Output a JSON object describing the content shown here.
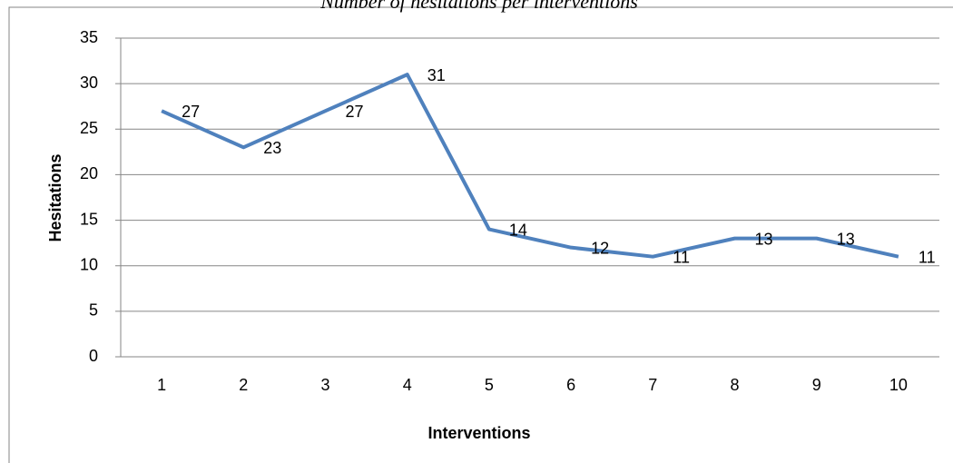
{
  "chart_data": {
    "type": "line",
    "title": "Number of hesitations per interventions",
    "x_label": "Interventions",
    "y_label": "Hesitations",
    "categories": [
      "1",
      "2",
      "3",
      "4",
      "5",
      "6",
      "7",
      "8",
      "9",
      "10"
    ],
    "series": [
      {
        "name": "Hesitations",
        "color": "#4f81bd",
        "values": [
          27,
          23,
          27,
          31,
          14,
          12,
          11,
          13,
          13,
          11
        ]
      }
    ],
    "ylim": [
      0,
      35
    ],
    "yticks": [
      0,
      5,
      10,
      15,
      20,
      25,
      30,
      35
    ],
    "grid": true
  }
}
